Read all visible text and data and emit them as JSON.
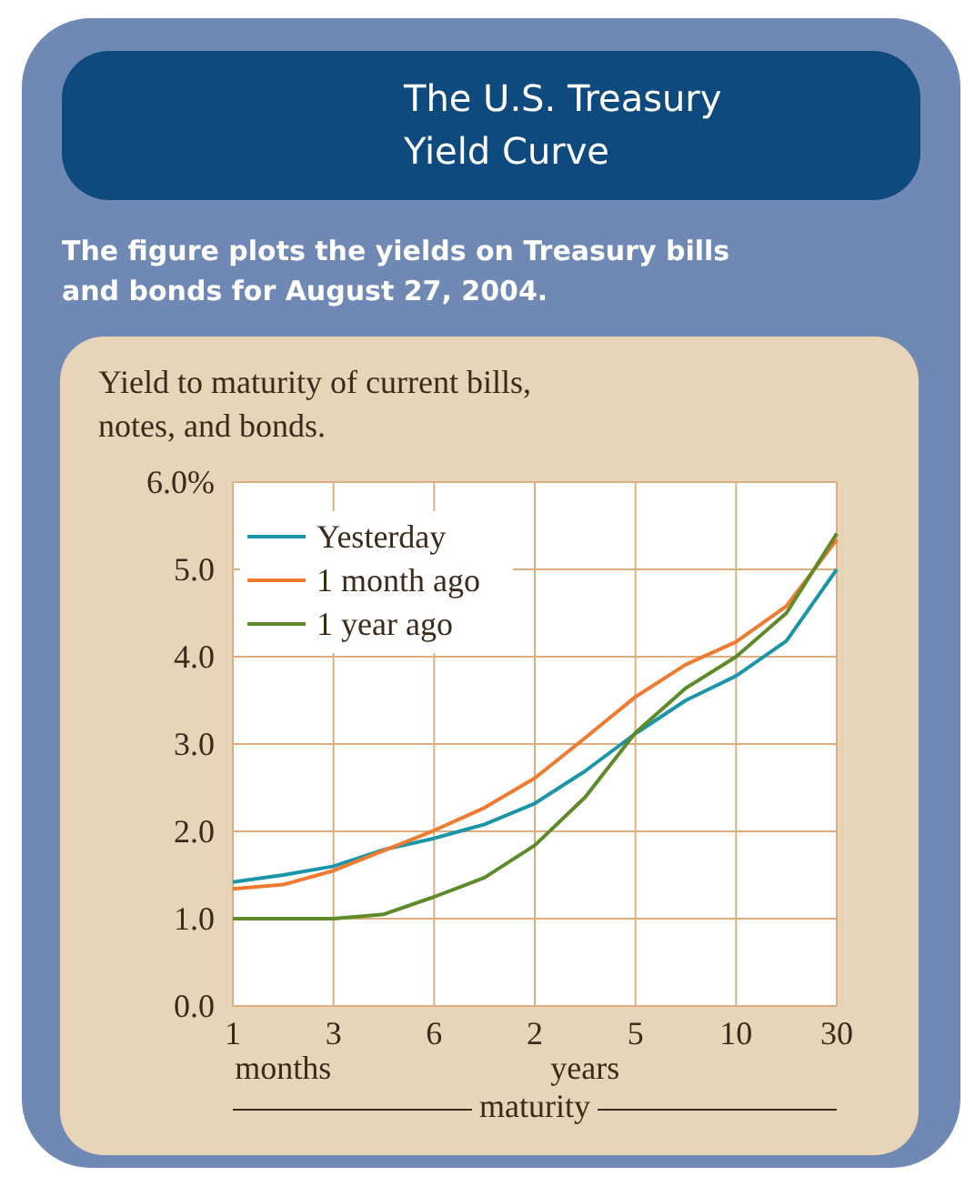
{
  "chart_data": {
    "type": "line",
    "title": "The U.S. Treasury Yield Curve",
    "subtitle": "The figure plots the yields on Treasury bills and bonds for August 27, 2004.",
    "ylabel": "Yield to maturity of current bills, notes, and bonds.",
    "xlabel": "maturity",
    "annotations": [
      "months",
      "years"
    ],
    "categories": [
      "1",
      null,
      "3",
      null,
      "6",
      null,
      "2",
      null,
      "5",
      null,
      "10",
      null,
      "30"
    ],
    "ylim": [
      0,
      6
    ],
    "yticks": [
      {
        "value": 0,
        "label": "0.0"
      },
      {
        "value": 1,
        "label": "1.0"
      },
      {
        "value": 2,
        "label": "2.0"
      },
      {
        "value": 3,
        "label": "3.0"
      },
      {
        "value": 4,
        "label": "4.0"
      },
      {
        "value": 5,
        "label": "5.0"
      },
      {
        "value": 6,
        "label": "6.0%"
      }
    ],
    "grid": true,
    "legend": "top left",
    "line_style": "solid",
    "marker": "none",
    "series": [
      {
        "name": "Yesterday",
        "color": "#1a96a8",
        "values": [
          1.42,
          1.5,
          1.6,
          1.79,
          1.92,
          2.08,
          2.32,
          2.69,
          3.12,
          3.5,
          3.78,
          4.18,
          5.0
        ]
      },
      {
        "name": "1 month ago",
        "color": "#f07a30",
        "values": [
          1.34,
          1.39,
          1.55,
          1.78,
          2.01,
          2.27,
          2.61,
          3.07,
          3.54,
          3.91,
          4.17,
          4.58,
          5.34
        ]
      },
      {
        "name": "1 year ago",
        "color": "#5e8a2a",
        "values": [
          1.0,
          1.0,
          1.0,
          1.05,
          1.25,
          1.47,
          1.84,
          2.39,
          3.13,
          3.64,
          4.0,
          4.5,
          5.41
        ]
      }
    ]
  }
}
